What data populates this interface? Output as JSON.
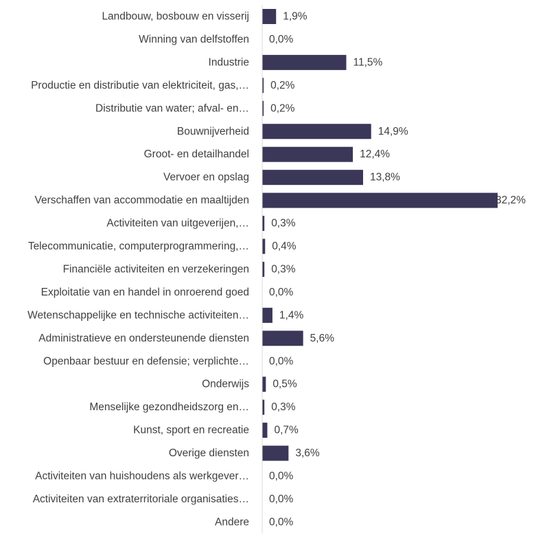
{
  "chart_data": {
    "type": "bar",
    "orientation": "horizontal",
    "bar_color": "#3b3758",
    "axis_color": "#d9d9d9",
    "text_color": "#404040",
    "xlim": [
      0,
      32.2
    ],
    "grid": false,
    "title": "",
    "xlabel": "",
    "ylabel": "",
    "categories": [
      "Landbouw, bosbouw en visserij",
      "Winning van delfstoffen",
      "Industrie",
      "Productie en distributie van elektriciteit, gas,…",
      "Distributie van water; afval- en…",
      "Bouwnijverheid",
      "Groot- en detailhandel",
      "Vervoer en opslag",
      "Verschaffen van accommodatie en maaltijden",
      "Activiteiten van uitgeverijen,…",
      "Telecommunicatie, computerprogrammering,…",
      "Financiële activiteiten en verzekeringen",
      "Exploitatie van en handel in onroerend goed",
      "Wetenschappelijke en technische activiteiten…",
      "Administratieve en ondersteunende diensten",
      "Openbaar bestuur en defensie; verplichte…",
      "Onderwijs",
      "Menselijke gezondheidszorg en…",
      "Kunst, sport en recreatie",
      "Overige diensten",
      "Activiteiten van huishoudens als werkgever…",
      "Activiteiten van extraterritoriale organisaties…",
      "Andere"
    ],
    "values": [
      1.9,
      0.0,
      11.5,
      0.2,
      0.2,
      14.9,
      12.4,
      13.8,
      32.2,
      0.3,
      0.4,
      0.3,
      0.0,
      1.4,
      5.6,
      0.0,
      0.5,
      0.3,
      0.7,
      3.6,
      0.0,
      0.0,
      0.0
    ],
    "value_labels": [
      "1,9%",
      "0,0%",
      "11,5%",
      "0,2%",
      "0,2%",
      "14,9%",
      "12,4%",
      "13,8%",
      "32,2%",
      "0,3%",
      "0,4%",
      "0,3%",
      "0,0%",
      "1,4%",
      "5,6%",
      "0,0%",
      "0,5%",
      "0,3%",
      "0,7%",
      "3,6%",
      "0,0%",
      "0,0%",
      "0,0%"
    ]
  }
}
